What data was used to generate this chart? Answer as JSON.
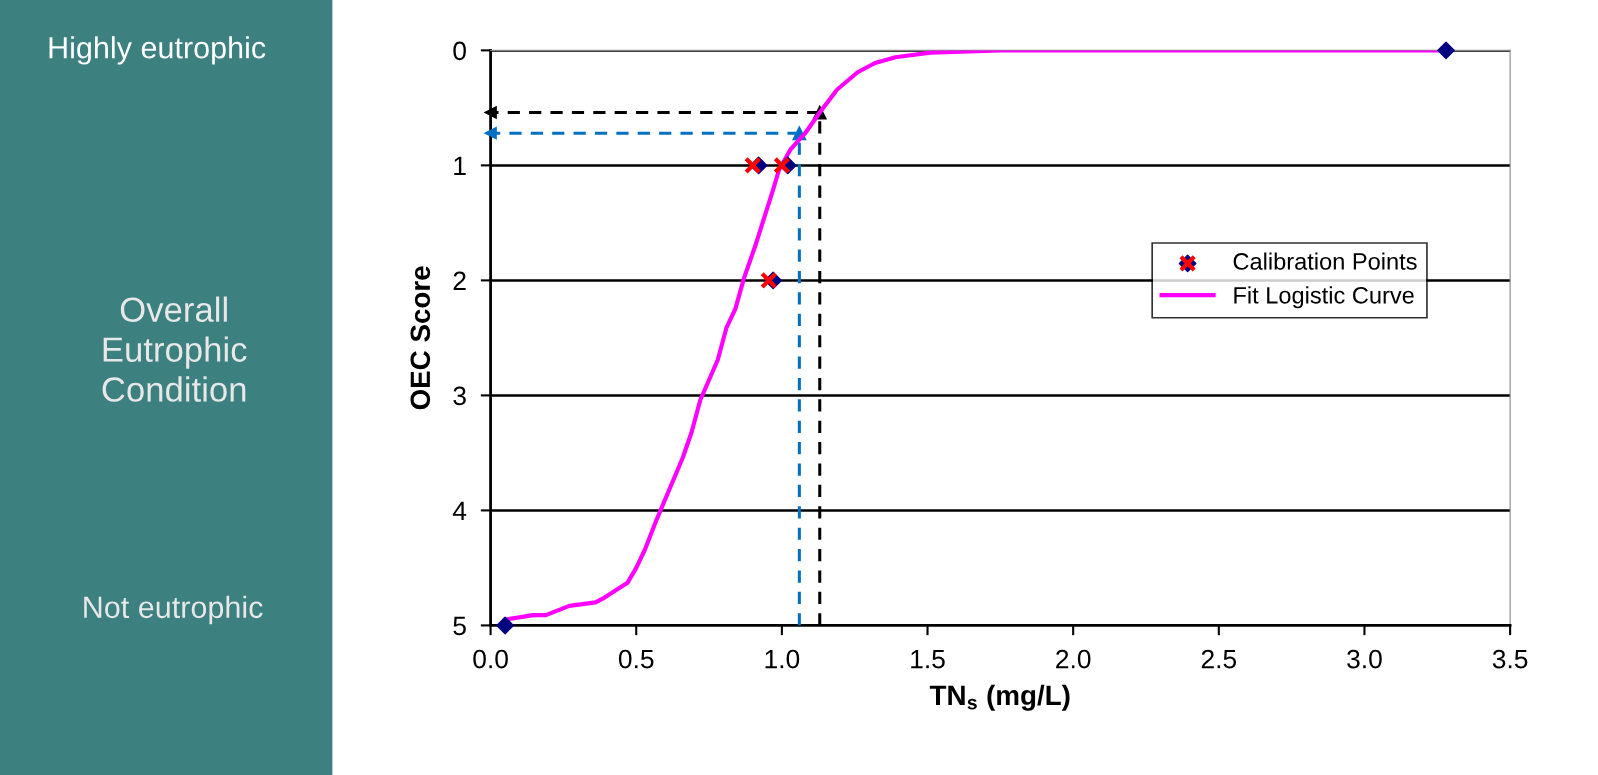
{
  "chart_data": {
    "type": "scatter",
    "xlabel": "TN$_{s}$ (mg/L)",
    "ylabel": "OEC Score",
    "xlim": [
      0,
      3.5
    ],
    "xticks": [
      {
        "value": 0,
        "label": "0.0"
      },
      {
        "value": 0.5,
        "label": "0.5"
      },
      {
        "value": 1,
        "label": "1.0"
      },
      {
        "value": 1.5,
        "label": "1.5"
      },
      {
        "value": 2,
        "label": "2.0"
      },
      {
        "value": 2.5,
        "label": "2.5"
      },
      {
        "value": 3,
        "label": "3.0"
      },
      {
        "value": 3.5,
        "label": "3.5"
      }
    ],
    "ylim": [
      5,
      0
    ],
    "yticks": [
      0,
      1,
      2,
      3,
      4,
      5
    ],
    "grid": "y",
    "legend": "right",
    "annotations": [
      "Highly eutrophic",
      "Overall\nEutrophic\nCondition",
      "Not eutrophic"
    ],
    "series": [
      {
        "name": "Fit Logistic Curve",
        "type": "line",
        "color": "#ff00ff",
        "line_style": "solid",
        "marker": "none",
        "x": [
          0.05,
          0.146,
          0.19,
          0.27,
          0.36,
          0.39,
          0.47,
          0.5,
          0.53,
          0.57,
          0.66,
          0.69,
          0.72,
          0.78,
          0.81,
          0.84,
          0.87,
          0.91,
          0.94,
          0.97,
          0.99,
          1.03,
          1.08,
          1.13,
          1.19,
          1.26,
          1.32,
          1.39,
          1.51,
          1.75,
          3.28
        ],
        "values": [
          4.95,
          4.91,
          4.91,
          4.83,
          4.8,
          4.76,
          4.63,
          4.5,
          4.34,
          4.08,
          3.54,
          3.32,
          3.04,
          2.69,
          2.41,
          2.25,
          1.98,
          1.69,
          1.45,
          1.21,
          1.04,
          0.86,
          0.72,
          0.54,
          0.34,
          0.19,
          0.11,
          0.06,
          0.02,
          0,
          0
        ]
      },
      {
        "name": "Calibration Points",
        "color": "#000080",
        "marker": "diamond",
        "x": [
          0.05,
          0.92,
          1.02,
          0.97,
          3.28
        ],
        "values": [
          5,
          1,
          1,
          2,
          0
        ]
      },
      {
        "color": "#ff0000",
        "marker": "cross",
        "x": [
          0.9,
          1.0,
          0.955
        ],
        "values": [
          1,
          1,
          2
        ]
      },
      {
        "type": "line",
        "color": "#000000",
        "line_style": "dashed",
        "marker": "triangle",
        "x": [
          1.13,
          1.13,
          0
        ],
        "values": [
          5,
          0.54,
          0.54
        ]
      },
      {
        "type": "line",
        "color": "#0070c0",
        "line_style": "dashed",
        "marker": "triangle",
        "x": [
          1.06,
          1.06,
          0
        ],
        "values": [
          5,
          0.72,
          0.72
        ]
      }
    ]
  }
}
